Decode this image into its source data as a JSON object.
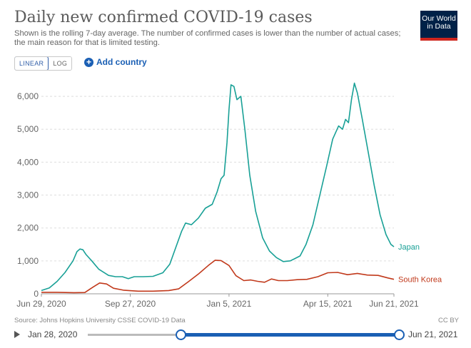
{
  "header": {
    "title": "Daily new confirmed COVID-19 cases",
    "subtitle": "Shown is the rolling 7-day average. The number of confirmed cases is lower than the number of actual cases; the main reason for that is limited testing.",
    "logo_line1": "Our World",
    "logo_line2": "in Data"
  },
  "controls": {
    "linear_label": "LINEAR",
    "log_label": "LOG",
    "add_country_label": "Add country"
  },
  "footer": {
    "source": "Source: Johns Hopkins University CSSE COVID-19 Data",
    "license": "CC BY"
  },
  "timeline": {
    "start_label": "Jan 28, 2020",
    "end_label": "Jun 21, 2021"
  },
  "colors": {
    "japan": "#18a096",
    "south_korea": "#c1391b",
    "accent": "#1a5fb4"
  },
  "chart_data": {
    "type": "line",
    "title": "Daily new confirmed COVID-19 cases",
    "ylim": [
      0,
      6500
    ],
    "y_ticks": [
      0,
      1000,
      2000,
      3000,
      4000,
      5000,
      6000
    ],
    "y_tick_labels": [
      "0",
      "1,000",
      "2,000",
      "3,000",
      "4,000",
      "5,000",
      "6,000"
    ],
    "x_range": [
      "2020-06-29",
      "2021-06-21"
    ],
    "x_ticks": [
      "2020-06-29",
      "2020-09-27",
      "2021-01-05",
      "2021-04-15",
      "2021-06-21"
    ],
    "x_tick_labels": [
      "Jun 29, 2020",
      "Sep 27, 2020",
      "Jan 5, 2021",
      "Apr 15, 2021",
      "Jun 21, 2021"
    ],
    "grid": true,
    "legend": "inline-right",
    "series": [
      {
        "name": "Japan",
        "points": [
          [
            "2020-06-29",
            100
          ],
          [
            "2020-07-07",
            180
          ],
          [
            "2020-07-15",
            380
          ],
          [
            "2020-07-23",
            650
          ],
          [
            "2020-07-31",
            1000
          ],
          [
            "2020-08-04",
            1280
          ],
          [
            "2020-08-07",
            1360
          ],
          [
            "2020-08-10",
            1340
          ],
          [
            "2020-08-13",
            1200
          ],
          [
            "2020-08-19",
            1000
          ],
          [
            "2020-08-26",
            750
          ],
          [
            "2020-09-05",
            560
          ],
          [
            "2020-09-12",
            520
          ],
          [
            "2020-09-19",
            520
          ],
          [
            "2020-09-25",
            460
          ],
          [
            "2020-10-01",
            520
          ],
          [
            "2020-10-10",
            520
          ],
          [
            "2020-10-20",
            530
          ],
          [
            "2020-10-30",
            640
          ],
          [
            "2020-11-06",
            900
          ],
          [
            "2020-11-12",
            1400
          ],
          [
            "2020-11-18",
            1900
          ],
          [
            "2020-11-22",
            2150
          ],
          [
            "2020-11-28",
            2100
          ],
          [
            "2020-12-05",
            2300
          ],
          [
            "2020-12-12",
            2600
          ],
          [
            "2020-12-19",
            2720
          ],
          [
            "2020-12-24",
            3100
          ],
          [
            "2020-12-28",
            3500
          ],
          [
            "2020-12-31",
            3600
          ],
          [
            "2021-01-03",
            4600
          ],
          [
            "2021-01-05",
            5600
          ],
          [
            "2021-01-07",
            6350
          ],
          [
            "2021-01-10",
            6300
          ],
          [
            "2021-01-13",
            5900
          ],
          [
            "2021-01-17",
            6000
          ],
          [
            "2021-01-21",
            5000
          ],
          [
            "2021-01-26",
            3600
          ],
          [
            "2021-02-01",
            2500
          ],
          [
            "2021-02-08",
            1700
          ],
          [
            "2021-02-15",
            1300
          ],
          [
            "2021-02-22",
            1100
          ],
          [
            "2021-03-01",
            980
          ],
          [
            "2021-03-08",
            1000
          ],
          [
            "2021-03-12",
            1060
          ],
          [
            "2021-03-18",
            1150
          ],
          [
            "2021-03-24",
            1500
          ],
          [
            "2021-03-31",
            2100
          ],
          [
            "2021-04-07",
            3000
          ],
          [
            "2021-04-14",
            3900
          ],
          [
            "2021-04-20",
            4700
          ],
          [
            "2021-04-26",
            5100
          ],
          [
            "2021-04-30",
            5000
          ],
          [
            "2021-05-03",
            5300
          ],
          [
            "2021-05-06",
            5200
          ],
          [
            "2021-05-09",
            5900
          ],
          [
            "2021-05-12",
            6400
          ],
          [
            "2021-05-15",
            6100
          ],
          [
            "2021-05-20",
            5300
          ],
          [
            "2021-05-26",
            4300
          ],
          [
            "2021-06-01",
            3300
          ],
          [
            "2021-06-07",
            2400
          ],
          [
            "2021-06-13",
            1800
          ],
          [
            "2021-06-18",
            1500
          ],
          [
            "2021-06-21",
            1430
          ]
        ]
      },
      {
        "name": "South Korea",
        "points": [
          [
            "2020-06-29",
            45
          ],
          [
            "2020-07-15",
            45
          ],
          [
            "2020-08-01",
            35
          ],
          [
            "2020-08-12",
            40
          ],
          [
            "2020-08-20",
            200
          ],
          [
            "2020-08-27",
            330
          ],
          [
            "2020-09-03",
            300
          ],
          [
            "2020-09-10",
            170
          ],
          [
            "2020-09-20",
            110
          ],
          [
            "2020-10-05",
            80
          ],
          [
            "2020-10-20",
            80
          ],
          [
            "2020-11-05",
            100
          ],
          [
            "2020-11-15",
            150
          ],
          [
            "2020-11-25",
            370
          ],
          [
            "2020-12-05",
            600
          ],
          [
            "2020-12-15",
            860
          ],
          [
            "2020-12-22",
            1020
          ],
          [
            "2020-12-28",
            1010
          ],
          [
            "2021-01-05",
            860
          ],
          [
            "2021-01-12",
            550
          ],
          [
            "2021-01-20",
            400
          ],
          [
            "2021-01-27",
            420
          ],
          [
            "2021-02-03",
            380
          ],
          [
            "2021-02-10",
            350
          ],
          [
            "2021-02-17",
            450
          ],
          [
            "2021-02-24",
            400
          ],
          [
            "2021-03-05",
            400
          ],
          [
            "2021-03-15",
            430
          ],
          [
            "2021-03-25",
            440
          ],
          [
            "2021-04-05",
            520
          ],
          [
            "2021-04-15",
            640
          ],
          [
            "2021-04-25",
            650
          ],
          [
            "2021-05-05",
            580
          ],
          [
            "2021-05-15",
            620
          ],
          [
            "2021-05-25",
            570
          ],
          [
            "2021-06-05",
            560
          ],
          [
            "2021-06-15",
            480
          ],
          [
            "2021-06-21",
            440
          ]
        ]
      }
    ]
  }
}
